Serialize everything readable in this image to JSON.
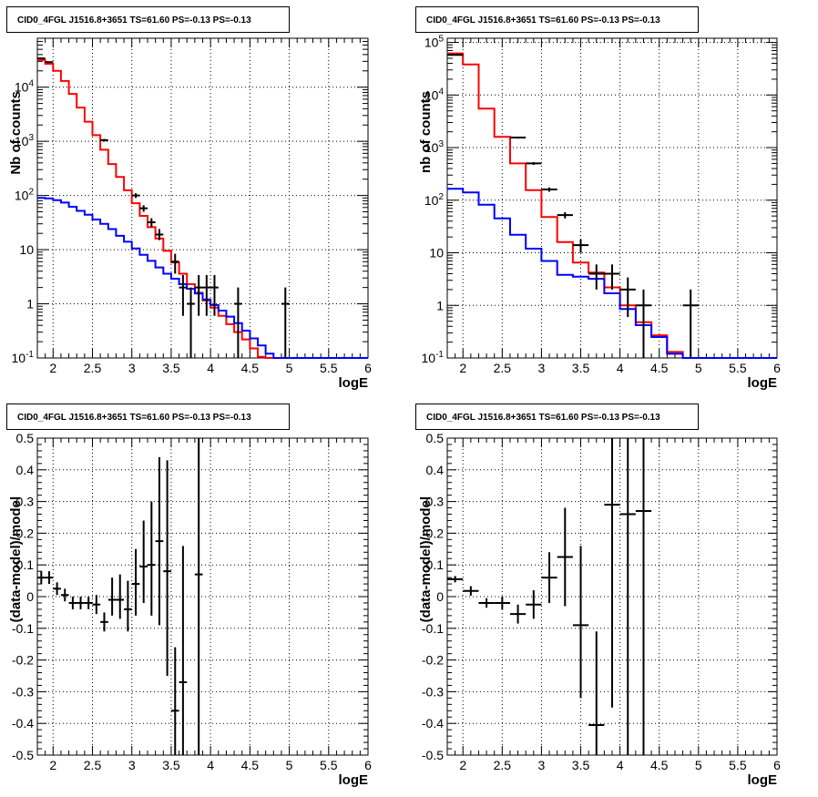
{
  "chart_data": [
    {
      "type": "line",
      "panel": "top-left",
      "title": "CID0_4FGL J1516.8+3651 TS=61.60 PS=-0.13 PS=-0.13",
      "xlabel": "logE",
      "ylabel": "Nb of counts",
      "xlim": [
        1.8,
        6.0
      ],
      "ylim": [
        0.1,
        80000
      ],
      "yscale": "log",
      "grid": true,
      "xticks": [
        2,
        2.5,
        3,
        3.5,
        4,
        4.5,
        5,
        5.5,
        6
      ],
      "xtick_labels": [
        "2",
        "2.5",
        "3",
        "3.5",
        "4",
        "4.5",
        "5",
        "5.5",
        "6"
      ],
      "yticks": [
        0.1,
        1,
        10,
        100,
        1000,
        10000
      ],
      "ytick_labels": [
        "10^-1",
        "1",
        "10",
        "10^2",
        "10^3",
        "10^4"
      ],
      "bin_edges": [
        1.8,
        1.9,
        2.0,
        2.1,
        2.2,
        2.3,
        2.4,
        2.5,
        2.6,
        2.7,
        2.8,
        2.9,
        3.0,
        3.1,
        3.2,
        3.3,
        3.4,
        3.5,
        3.6,
        3.7,
        3.8,
        3.9,
        4.0,
        4.1,
        4.2,
        4.3,
        4.4,
        4.5,
        4.6,
        4.7,
        4.8,
        4.9,
        5.0,
        5.1,
        5.2,
        5.3,
        5.4,
        5.5,
        5.6,
        5.7,
        5.8,
        5.9,
        6.0
      ],
      "series": [
        {
          "role": "total-model",
          "color": "#ff0000",
          "values": [
            32000,
            27000,
            20000,
            13000,
            7500,
            4200,
            2300,
            1300,
            700,
            380,
            220,
            125,
            72,
            42,
            26,
            16,
            9.5,
            5.8,
            3.6,
            2.3,
            1.6,
            1.15,
            0.85,
            0.6,
            0.42,
            0.3,
            0.22,
            0.15,
            0.105,
            0.1,
            0.1,
            0.1,
            0.1,
            0.1,
            0.1,
            0.1,
            0.1,
            0.1,
            0.1,
            0.1,
            0.1,
            0.1
          ]
        },
        {
          "role": "background-model",
          "color": "#0000ff",
          "values": [
            90,
            88,
            82,
            74,
            62,
            52,
            44,
            36,
            30,
            24,
            18,
            14,
            10.5,
            8.0,
            6.2,
            4.7,
            3.6,
            2.9,
            2.3,
            1.9,
            1.55,
            1.2,
            0.95,
            0.75,
            0.58,
            0.44,
            0.32,
            0.23,
            0.17,
            0.12,
            0.1,
            0.1,
            0.1,
            0.1,
            0.1,
            0.1,
            0.1,
            0.1,
            0.1,
            0.1,
            0.1,
            0.1
          ]
        }
      ],
      "points": [
        {
          "x": 1.85,
          "y": 34000,
          "xerr": 0.05,
          "ylo": 33600,
          "yhi": 34400
        },
        {
          "x": 1.95,
          "y": 29000,
          "xerr": 0.05,
          "ylo": 28600,
          "yhi": 29400
        },
        {
          "x": 2.65,
          "y": 1050,
          "xerr": 0.05,
          "ylo": 990,
          "yhi": 1110
        },
        {
          "x": 3.05,
          "y": 100,
          "xerr": 0.05,
          "ylo": 90,
          "yhi": 110
        },
        {
          "x": 3.15,
          "y": 58,
          "xerr": 0.05,
          "ylo": 50,
          "yhi": 66
        },
        {
          "x": 3.25,
          "y": 32,
          "xerr": 0.05,
          "ylo": 26,
          "yhi": 38
        },
        {
          "x": 3.35,
          "y": 19,
          "xerr": 0.05,
          "ylo": 15,
          "yhi": 24
        },
        {
          "x": 3.55,
          "y": 6,
          "xerr": 0.05,
          "ylo": 3.6,
          "yhi": 8.4
        },
        {
          "x": 3.65,
          "y": 2,
          "xerr": 0.05,
          "ylo": 0.6,
          "yhi": 3.4
        },
        {
          "x": 3.75,
          "y": 1,
          "xerr": 0.05,
          "ylo": 0.1,
          "yhi": 2.0
        },
        {
          "x": 3.85,
          "y": 2,
          "xerr": 0.05,
          "ylo": 0.6,
          "yhi": 3.4
        },
        {
          "x": 3.95,
          "y": 2,
          "xerr": 0.05,
          "ylo": 0.6,
          "yhi": 3.4
        },
        {
          "x": 4.05,
          "y": 2,
          "xerr": 0.05,
          "ylo": 0.6,
          "yhi": 3.4
        },
        {
          "x": 4.35,
          "y": 1,
          "xerr": 0.05,
          "ylo": 0.1,
          "yhi": 2.0
        },
        {
          "x": 4.95,
          "y": 1,
          "xerr": 0.05,
          "ylo": 0.1,
          "yhi": 2.0
        }
      ]
    },
    {
      "type": "line",
      "panel": "top-right",
      "title": "CID0_4FGL J1516.8+3651 TS=61.60 PS=-0.13 PS=-0.13",
      "xlabel": "logE",
      "ylabel": "nb of counts",
      "xlim": [
        1.8,
        6.0
      ],
      "ylim": [
        0.1,
        120000
      ],
      "yscale": "log",
      "grid": true,
      "xticks": [
        2,
        2.5,
        3,
        3.5,
        4,
        4.5,
        5,
        5.5,
        6
      ],
      "xtick_labels": [
        "2",
        "2.5",
        "3",
        "3.5",
        "4",
        "4.5",
        "5",
        "5.5",
        "6"
      ],
      "yticks": [
        0.1,
        1,
        10,
        100,
        1000,
        10000,
        100000
      ],
      "ytick_labels": [
        "10^-1",
        "1",
        "10",
        "10^2",
        "10^3",
        "10^4",
        "10^5"
      ],
      "bin_edges": [
        1.8,
        2.0,
        2.2,
        2.4,
        2.6,
        2.8,
        3.0,
        3.2,
        3.4,
        3.6,
        3.8,
        4.0,
        4.2,
        4.4,
        4.6,
        4.8,
        5.0,
        5.2,
        5.4,
        5.6,
        5.8,
        6.0
      ],
      "series": [
        {
          "role": "total-model",
          "color": "#ff0000",
          "values": [
            62000,
            38000,
            5500,
            1600,
            500,
            155,
            48,
            16,
            6.5,
            4.2,
            2.2,
            1.0,
            0.48,
            0.27,
            0.13,
            0.1,
            0.1,
            0.1,
            0.1,
            0.1,
            0.1
          ]
        },
        {
          "role": "background-model",
          "color": "#0000ff",
          "values": [
            165,
            140,
            82,
            45,
            22,
            12,
            7.0,
            3.8,
            3.5,
            3.2,
            1.7,
            0.85,
            0.42,
            0.25,
            0.12,
            0.1,
            0.1,
            0.1,
            0.1,
            0.1,
            0.1
          ]
        }
      ],
      "points": [
        {
          "x": 1.9,
          "y": 58000,
          "xerr": 0.1,
          "ylo": 57500,
          "yhi": 58500
        },
        {
          "x": 2.7,
          "y": 1550,
          "xerr": 0.1,
          "ylo": 1480,
          "yhi": 1620
        },
        {
          "x": 2.9,
          "y": 500,
          "xerr": 0.1,
          "ylo": 470,
          "yhi": 530
        },
        {
          "x": 3.1,
          "y": 160,
          "xerr": 0.1,
          "ylo": 145,
          "yhi": 175
        },
        {
          "x": 3.3,
          "y": 52,
          "xerr": 0.1,
          "ylo": 45,
          "yhi": 59
        },
        {
          "x": 3.5,
          "y": 14,
          "xerr": 0.1,
          "ylo": 10,
          "yhi": 18
        },
        {
          "x": 3.7,
          "y": 4,
          "xerr": 0.1,
          "ylo": 2,
          "yhi": 6
        },
        {
          "x": 3.9,
          "y": 4,
          "xerr": 0.1,
          "ylo": 2,
          "yhi": 6
        },
        {
          "x": 4.1,
          "y": 2,
          "xerr": 0.1,
          "ylo": 0.6,
          "yhi": 3.4
        },
        {
          "x": 4.3,
          "y": 1,
          "xerr": 0.1,
          "ylo": 0.1,
          "yhi": 2.0
        },
        {
          "x": 4.9,
          "y": 1,
          "xerr": 0.1,
          "ylo": 0.1,
          "yhi": 2.0
        }
      ]
    },
    {
      "type": "scatter",
      "panel": "bottom-left",
      "title": "CID0_4FGL J1516.8+3651 TS=61.60 PS=-0.13 PS=-0.13",
      "xlabel": "logE",
      "ylabel": "(data-model)/model",
      "xlim": [
        1.8,
        6.0
      ],
      "ylim": [
        -0.5,
        0.5
      ],
      "yscale": "linear",
      "grid": true,
      "xticks": [
        2,
        2.5,
        3,
        3.5,
        4,
        4.5,
        5,
        5.5,
        6
      ],
      "xtick_labels": [
        "2",
        "2.5",
        "3",
        "3.5",
        "4",
        "4.5",
        "5",
        "5.5",
        "6"
      ],
      "yticks": [
        -0.5,
        -0.4,
        -0.3,
        -0.2,
        -0.1,
        0,
        0.1,
        0.2,
        0.3,
        0.4,
        0.5
      ],
      "ytick_labels": [
        "-0.5",
        "-0.4",
        "-0.3",
        "-0.2",
        "-0.1",
        "0",
        "0.1",
        "0.2",
        "0.3",
        "0.4",
        "0.5"
      ],
      "series": [],
      "points": [
        {
          "x": 1.85,
          "y": 0.06,
          "xerr": 0.05,
          "ylo": 0.04,
          "yhi": 0.08
        },
        {
          "x": 1.95,
          "y": 0.06,
          "xerr": 0.05,
          "ylo": 0.04,
          "yhi": 0.08
        },
        {
          "x": 2.05,
          "y": 0.025,
          "xerr": 0.05,
          "ylo": 0.005,
          "yhi": 0.045
        },
        {
          "x": 2.15,
          "y": 0.005,
          "xerr": 0.05,
          "ylo": -0.015,
          "yhi": 0.025
        },
        {
          "x": 2.25,
          "y": -0.02,
          "xerr": 0.05,
          "ylo": -0.04,
          "yhi": 0.0
        },
        {
          "x": 2.35,
          "y": -0.02,
          "xerr": 0.05,
          "ylo": -0.04,
          "yhi": 0.0
        },
        {
          "x": 2.45,
          "y": -0.02,
          "xerr": 0.05,
          "ylo": -0.04,
          "yhi": 0.0
        },
        {
          "x": 2.55,
          "y": -0.025,
          "xerr": 0.05,
          "ylo": -0.055,
          "yhi": 0.005
        },
        {
          "x": 2.65,
          "y": -0.08,
          "xerr": 0.05,
          "ylo": -0.11,
          "yhi": -0.05
        },
        {
          "x": 2.75,
          "y": -0.01,
          "xerr": 0.05,
          "ylo": -0.06,
          "yhi": 0.06
        },
        {
          "x": 2.85,
          "y": -0.01,
          "xerr": 0.05,
          "ylo": -0.07,
          "yhi": 0.07
        },
        {
          "x": 2.95,
          "y": -0.04,
          "xerr": 0.05,
          "ylo": -0.11,
          "yhi": 0.05
        },
        {
          "x": 3.05,
          "y": 0.04,
          "xerr": 0.05,
          "ylo": -0.06,
          "yhi": 0.15
        },
        {
          "x": 3.15,
          "y": 0.095,
          "xerr": 0.05,
          "ylo": -0.02,
          "yhi": 0.24
        },
        {
          "x": 3.25,
          "y": 0.1,
          "xerr": 0.05,
          "ylo": -0.06,
          "yhi": 0.3
        },
        {
          "x": 3.35,
          "y": 0.175,
          "xerr": 0.05,
          "ylo": -0.09,
          "yhi": 0.44
        },
        {
          "x": 3.45,
          "y": 0.08,
          "xerr": 0.05,
          "ylo": -0.25,
          "yhi": 0.43
        },
        {
          "x": 3.55,
          "y": -0.36,
          "xerr": 0.05,
          "ylo": -0.5,
          "yhi": -0.16
        },
        {
          "x": 3.65,
          "y": -0.27,
          "xerr": 0.05,
          "ylo": -0.5,
          "yhi": 0.16
        },
        {
          "x": 3.85,
          "y": 0.07,
          "xerr": 0.05,
          "ylo": -0.5,
          "yhi": 0.5
        }
      ]
    },
    {
      "type": "scatter",
      "panel": "bottom-right",
      "title": "CID0_4FGL J1516.8+3651 TS=61.60 PS=-0.13 PS=-0.13",
      "xlabel": "logE",
      "ylabel": "(data-model)/model",
      "xlim": [
        1.8,
        6.0
      ],
      "ylim": [
        -0.5,
        0.5
      ],
      "yscale": "linear",
      "grid": true,
      "xticks": [
        2,
        2.5,
        3,
        3.5,
        4,
        4.5,
        5,
        5.5,
        6
      ],
      "xtick_labels": [
        "2",
        "2.5",
        "3",
        "3.5",
        "4",
        "4.5",
        "5",
        "5.5",
        "6"
      ],
      "yticks": [
        -0.5,
        -0.4,
        -0.3,
        -0.2,
        -0.1,
        0,
        0.1,
        0.2,
        0.3,
        0.4,
        0.5
      ],
      "ytick_labels": [
        "-0.5",
        "-0.4",
        "-0.3",
        "-0.2",
        "-0.1",
        "0",
        "0.1",
        "0.2",
        "0.3",
        "0.4",
        "0.5"
      ],
      "series": [],
      "points": [
        {
          "x": 1.9,
          "y": 0.055,
          "xerr": 0.1,
          "ylo": 0.045,
          "yhi": 0.065
        },
        {
          "x": 2.1,
          "y": 0.018,
          "xerr": 0.1,
          "ylo": 0.003,
          "yhi": 0.033
        },
        {
          "x": 2.3,
          "y": -0.02,
          "xerr": 0.1,
          "ylo": -0.035,
          "yhi": -0.005
        },
        {
          "x": 2.5,
          "y": -0.02,
          "xerr": 0.1,
          "ylo": -0.04,
          "yhi": 0.0
        },
        {
          "x": 2.7,
          "y": -0.055,
          "xerr": 0.1,
          "ylo": -0.085,
          "yhi": -0.025
        },
        {
          "x": 2.9,
          "y": -0.025,
          "xerr": 0.1,
          "ylo": -0.07,
          "yhi": 0.02
        },
        {
          "x": 3.1,
          "y": 0.06,
          "xerr": 0.1,
          "ylo": -0.02,
          "yhi": 0.14
        },
        {
          "x": 3.3,
          "y": 0.125,
          "xerr": 0.1,
          "ylo": -0.03,
          "yhi": 0.28
        },
        {
          "x": 3.5,
          "y": -0.09,
          "xerr": 0.1,
          "ylo": -0.32,
          "yhi": 0.16
        },
        {
          "x": 3.7,
          "y": -0.405,
          "xerr": 0.1,
          "ylo": -0.5,
          "yhi": -0.11
        },
        {
          "x": 3.9,
          "y": 0.29,
          "xerr": 0.1,
          "ylo": -0.35,
          "yhi": 0.5
        },
        {
          "x": 4.1,
          "y": 0.26,
          "xerr": 0.1,
          "ylo": -0.5,
          "yhi": 0.5
        },
        {
          "x": 4.3,
          "y": 0.27,
          "xerr": 0.1,
          "ylo": -0.5,
          "yhi": 0.5
        }
      ]
    }
  ]
}
